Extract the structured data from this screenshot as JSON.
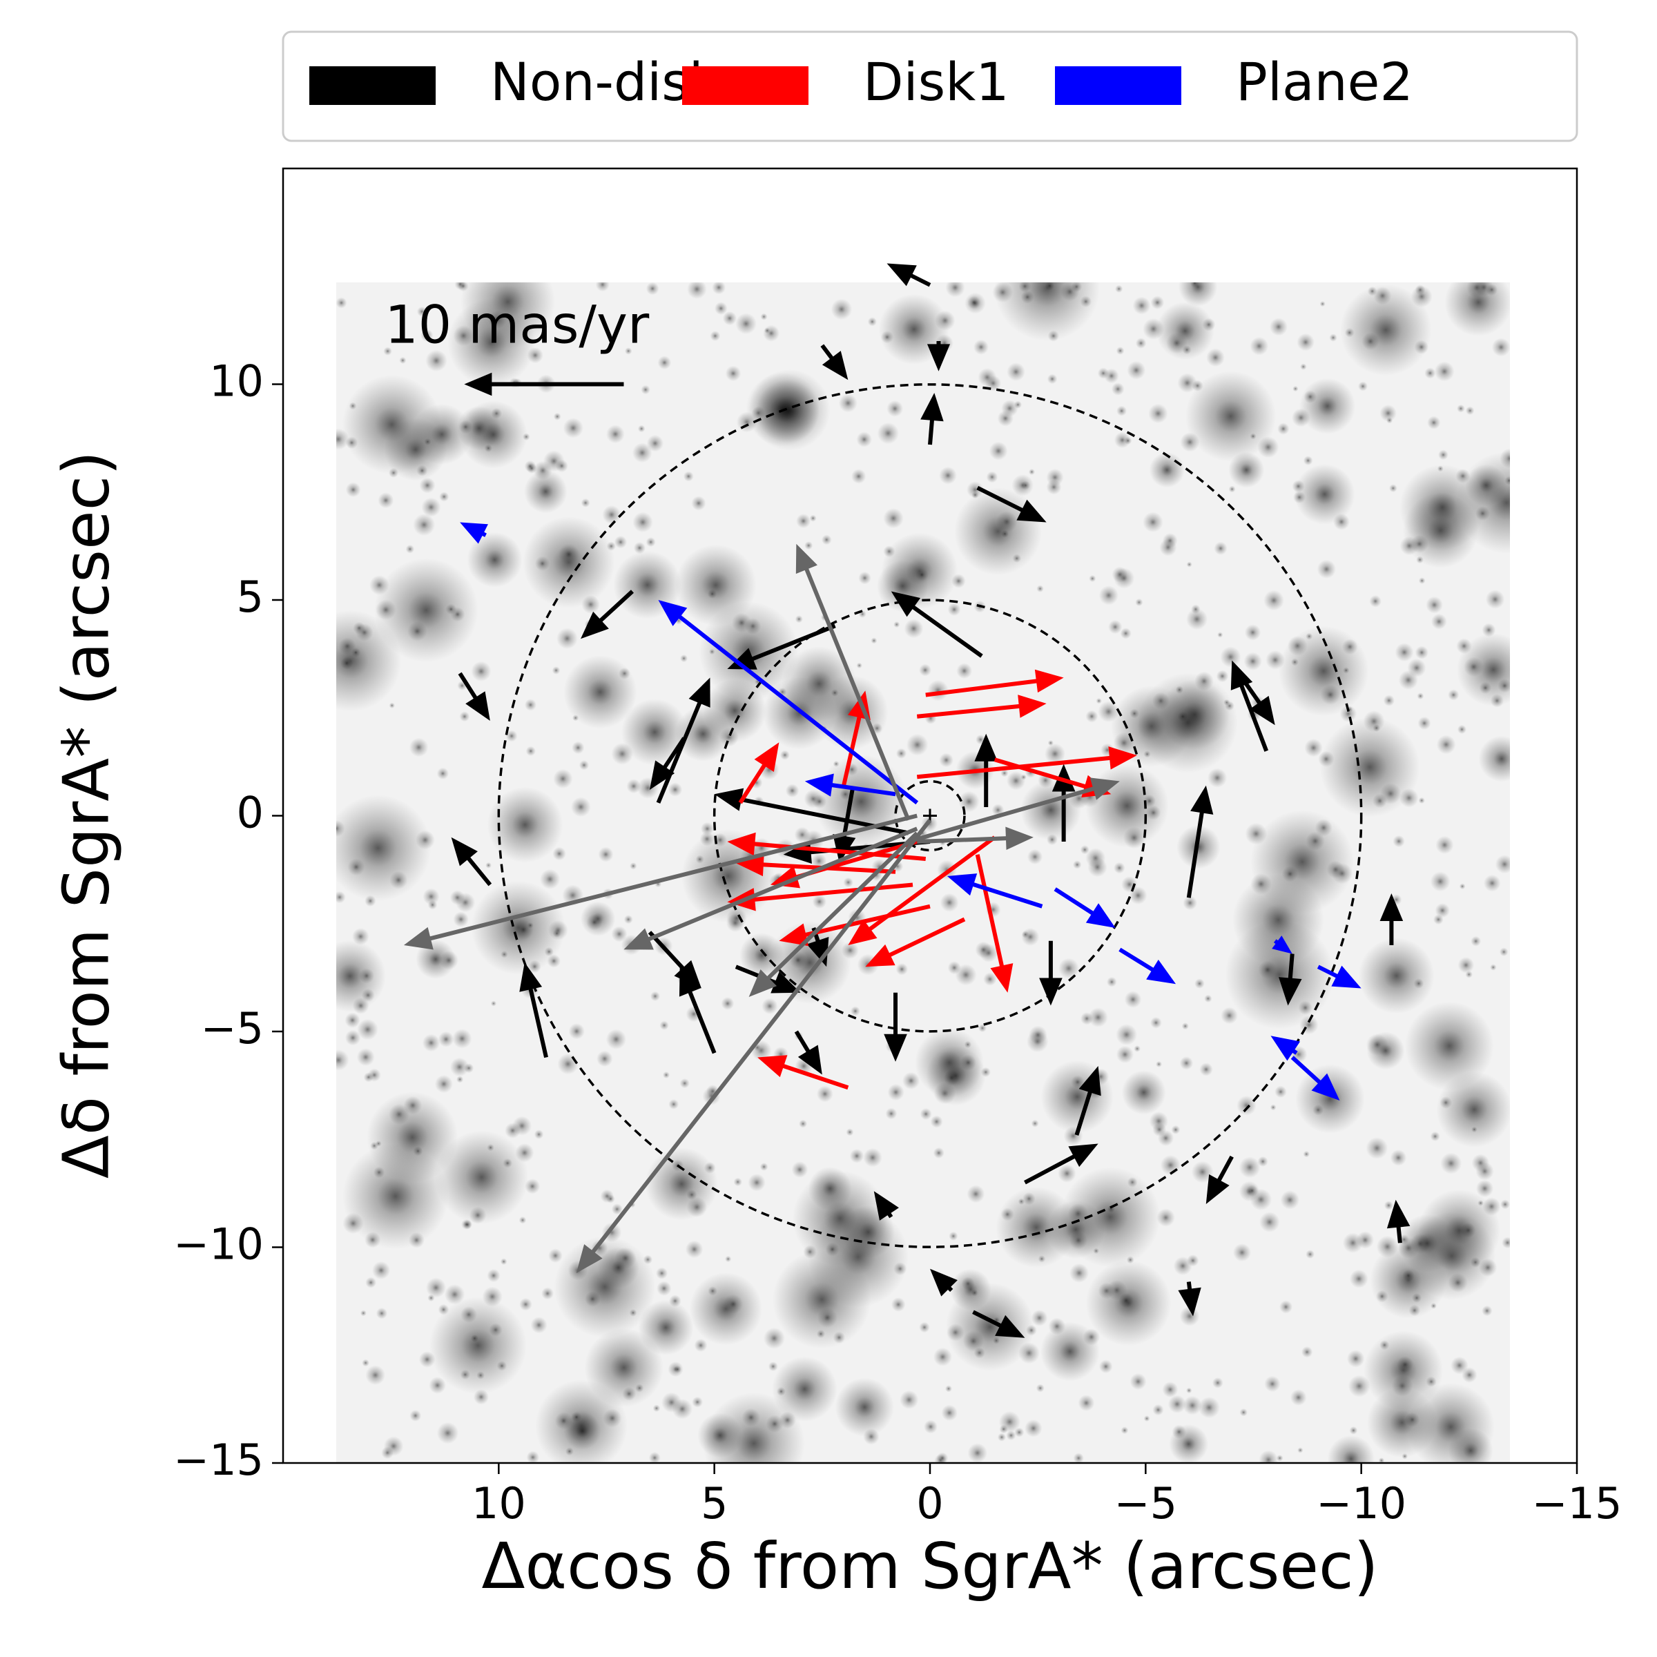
{
  "chart_data": {
    "type": "quiver",
    "xlabel": "Δαcos δ from SgrA* (arcsec)",
    "ylabel": "Δδ from SgrA* (arcsec)",
    "xlim": [
      15,
      -15
    ],
    "ylim": [
      -15,
      15
    ],
    "xticks": [
      10,
      5,
      0,
      {
        "value": -5,
        "label": "−5"
      },
      {
        "value": -10,
        "label": "−10"
      },
      {
        "value": -15,
        "label": "−15"
      }
    ],
    "yticks": [
      {
        "value": -15,
        "label": "−15"
      },
      {
        "value": -10,
        "label": "−10"
      },
      {
        "value": -5,
        "label": "−5"
      },
      0,
      5,
      10
    ],
    "circles": [
      10,
      5,
      0.8
    ],
    "key": {
      "label": "10 mas/yr",
      "x": [
        7.1,
        10.8
      ],
      "y": [
        10,
        10
      ]
    },
    "legend": "upper center outside",
    "series": [
      {
        "name": "Non-disk",
        "color": "#000000",
        "x": [
          0.0,
          2.5,
          -0.2,
          0.0,
          -1.1,
          6.9,
          10.9,
          -1.2,
          2.2,
          6.3,
          5.7,
          -1.3,
          -3.1,
          -6.0,
          -7.8,
          -7.3,
          10.2,
          8.9,
          6.5,
          5.0,
          4.5,
          0.8,
          -2.8,
          -8.4,
          -10.7,
          -3.4,
          -2.2,
          -7.0,
          -10.9,
          -6.0,
          -1.0,
          -0.5,
          3.1,
          0.5,
          0.0,
          1.8,
          0.9,
          2.7
        ],
        "y": [
          12.3,
          10.9,
          11.0,
          8.6,
          7.6,
          5.2,
          3.3,
          3.7,
          4.4,
          0.3,
          1.8,
          0.2,
          -0.6,
          -1.9,
          1.5,
          3.1,
          -1.6,
          -5.6,
          -2.7,
          -5.5,
          -3.5,
          -4.1,
          -2.9,
          -3.2,
          -3.0,
          -7.4,
          -8.5,
          -7.9,
          -9.9,
          -10.8,
          -11.5,
          -11.0,
          -5.0,
          -0.4,
          -0.6,
          0.6,
          -9.3,
          -2.6
        ],
        "x2": [
          1.0,
          1.9,
          -0.2,
          -0.1,
          -2.7,
          8.1,
          10.2,
          0.9,
          4.7,
          5.1,
          6.5,
          -1.3,
          -3.1,
          -6.4,
          -7.0,
          -8.0,
          11.1,
          9.4,
          5.3,
          5.8,
          3.0,
          0.8,
          -2.8,
          -8.3,
          -10.7,
          -3.9,
          -3.9,
          -6.4,
          -10.8,
          -6.1,
          -2.2,
          0.0,
          2.5,
          5.0,
          3.4,
          2.1,
          1.3,
          2.4
        ],
        "y2": [
          12.8,
          10.1,
          10.3,
          9.8,
          6.8,
          4.1,
          2.2,
          5.2,
          3.4,
          3.2,
          0.6,
          1.9,
          1.2,
          0.7,
          3.6,
          2.1,
          -0.5,
          -3.4,
          -4.0,
          -3.5,
          -4.1,
          -5.7,
          -4.4,
          -4.4,
          -1.8,
          -5.8,
          -7.6,
          -9.0,
          -8.9,
          -11.6,
          -12.1,
          -10.5,
          -6.0,
          0.5,
          -0.9,
          -1.1,
          -8.7,
          -3.5
        ]
      },
      {
        "name": "Disk1",
        "color": "#ff0000",
        "x": [
          0.1,
          0.3,
          0.3,
          -1.5,
          2.0,
          4.4,
          0.1,
          0.4,
          0.8,
          0.0,
          -1.5,
          -0.8,
          -1.1,
          1.9,
          0.3
        ],
        "y": [
          2.8,
          2.3,
          0.9,
          1.3,
          0.7,
          0.3,
          -1.0,
          -1.6,
          -1.3,
          -2.1,
          -0.5,
          -2.4,
          -0.9,
          -6.3,
          -0.6
        ],
        "x2": [
          -3.1,
          -2.7,
          -4.8,
          -4.2,
          1.5,
          3.5,
          4.7,
          4.7,
          4.5,
          3.5,
          1.9,
          1.5,
          -1.8,
          4.0,
          3.7
        ],
        "y2": [
          3.2,
          2.6,
          1.4,
          0.5,
          2.9,
          1.7,
          -0.6,
          -2.0,
          -1.1,
          -2.9,
          -3.0,
          -3.5,
          -4.1,
          -5.6,
          -1.6
        ]
      },
      {
        "name": "Plane2",
        "color": "#0000ff",
        "x": [
          0.3,
          0.8,
          -2.6,
          -2.9,
          -4.4,
          -8.0,
          -9.0,
          -8.4,
          -8.5,
          10.3
        ],
        "y": [
          0.3,
          0.5,
          -2.1,
          -1.7,
          -3.1,
          -2.9,
          -3.5,
          -5.6,
          -5.5,
          6.5
        ],
        "x2": [
          6.3,
          2.9,
          -0.4,
          -4.3,
          -5.7,
          -8.4,
          -10.0,
          -9.5,
          -7.9,
          10.9
        ],
        "y2": [
          5.0,
          0.8,
          -1.4,
          -2.6,
          -3.9,
          -3.2,
          -4.0,
          -6.6,
          -5.1,
          6.8
        ]
      },
      {
        "color": "#666666",
        "x": [
          0.3,
          0.5,
          0.3,
          0.0,
          0.5,
          0.3,
          0.3
        ],
        "y": [
          0.0,
          -0.1,
          -0.3,
          -0.1,
          -0.6,
          -0.4,
          -0.6
        ],
        "x2": [
          12.2,
          3.1,
          7.1,
          8.2,
          -4.4,
          4.2,
          -2.4
        ],
        "y2": [
          -3.0,
          6.3,
          -3.1,
          -10.6,
          0.8,
          -4.2,
          -0.5
        ]
      }
    ]
  }
}
